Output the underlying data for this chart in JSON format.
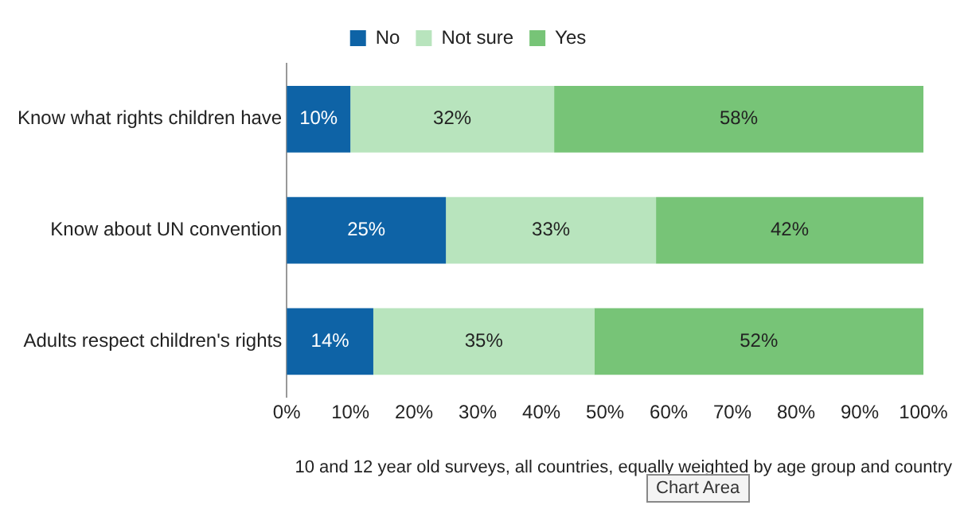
{
  "chart_data": {
    "type": "bar",
    "orientation": "horizontal",
    "stacked": true,
    "categories": [
      "Know what rights children have",
      "Know about UN convention",
      "Adults respect children's rights"
    ],
    "series": [
      {
        "name": "No",
        "color": "#0e63a6",
        "values": [
          10,
          25,
          13.6
        ],
        "value_labels": [
          "10%",
          "25%",
          "14%"
        ]
      },
      {
        "name": "Not sure",
        "color": "#b8e4bd",
        "values": [
          32,
          33,
          34.7
        ],
        "value_labels": [
          "32%",
          "33%",
          "35%"
        ]
      },
      {
        "name": "Yes",
        "color": "#77c477",
        "values": [
          58,
          42,
          51.7
        ],
        "value_labels": [
          "58%",
          "42%",
          "52%"
        ]
      }
    ],
    "xlim": [
      0,
      100
    ],
    "xticks": [
      {
        "value": 0,
        "label": "0%"
      },
      {
        "value": 10,
        "label": "10%"
      },
      {
        "value": 20,
        "label": "20%"
      },
      {
        "value": 30,
        "label": "30%"
      },
      {
        "value": 40,
        "label": "40%"
      },
      {
        "value": 50,
        "label": "50%"
      },
      {
        "value": 60,
        "label": "60%"
      },
      {
        "value": 70,
        "label": "70%"
      },
      {
        "value": 80,
        "label": "80%"
      },
      {
        "value": 90,
        "label": "90%"
      },
      {
        "value": 100,
        "label": "100%"
      }
    ],
    "grid": false,
    "legend": "top",
    "annotations": [
      "10 and 12 year old surveys, all countries, equally weighted by age group and country",
      "Chart Area"
    ]
  }
}
